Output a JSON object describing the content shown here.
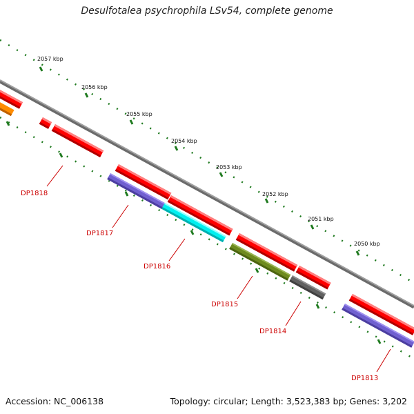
{
  "title": "Desulfotalea psychrophila LSv54, complete genome",
  "accession": "Accession: NC_006138",
  "summary": "Topology: circular; Length: 3,523,383 bp; Genes: 3,202",
  "colors": {
    "backbone": "#8a8a8a",
    "ticks": "#1f7a1f",
    "gene_forward": "#ff0000",
    "label": "#cc0000",
    "orange": "#ff8c00",
    "purple": "#7060d0",
    "cyan": "#00f0f0",
    "olive": "#6e8a1e",
    "gray": "#606060"
  },
  "ruler": [
    {
      "label": "2057 kbp"
    },
    {
      "label": "2056 kbp"
    },
    {
      "label": "2055 kbp"
    },
    {
      "label": "2054 kbp"
    },
    {
      "label": "2053 kbp"
    },
    {
      "label": "2052 kbp"
    },
    {
      "label": "2051 kbp"
    },
    {
      "label": "2050 kbp"
    }
  ],
  "genes": [
    {
      "label": "DP1818"
    },
    {
      "label": "DP1817"
    },
    {
      "label": "DP1816"
    },
    {
      "label": "DP1815"
    },
    {
      "label": "DP1814"
    },
    {
      "label": "DP1813"
    }
  ]
}
